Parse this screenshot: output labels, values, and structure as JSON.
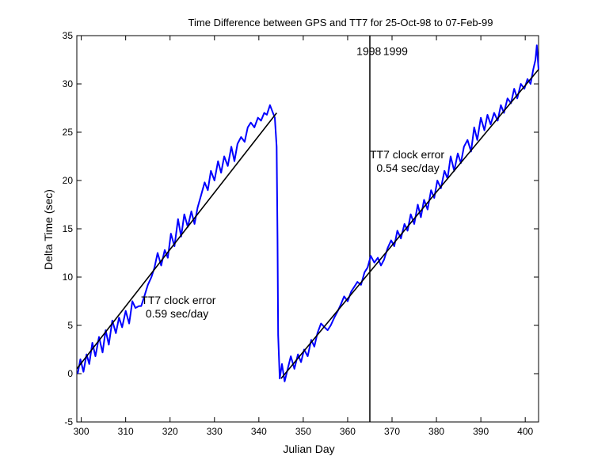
{
  "chart_data": {
    "type": "line",
    "title": "Time Difference between GPS and TT7 for 25-Oct-98 to 07-Feb-99",
    "xlabel": "Julian Day",
    "ylabel": "Delta Time  (sec)",
    "xlim": [
      299,
      403
    ],
    "ylim": [
      -5,
      35
    ],
    "x_ticks": [
      300,
      310,
      320,
      330,
      340,
      350,
      360,
      370,
      380,
      390,
      400
    ],
    "y_ticks": [
      -5,
      0,
      5,
      10,
      15,
      20,
      25,
      30,
      35
    ],
    "grid": false,
    "colors": {
      "measured": "#0000ff",
      "fit": "#000000",
      "divider": "#000000"
    },
    "series": [
      {
        "points": [
          [
            299.2,
            0.0
          ],
          [
            299.8,
            1.5
          ],
          [
            300.5,
            0.2
          ],
          [
            301.2,
            2.0
          ],
          [
            301.8,
            1.0
          ],
          [
            302.5,
            3.2
          ],
          [
            303.2,
            1.8
          ],
          [
            304.0,
            3.8
          ],
          [
            304.8,
            2.2
          ],
          [
            305.5,
            4.5
          ],
          [
            306.2,
            3.0
          ],
          [
            307.0,
            5.5
          ],
          [
            307.8,
            4.2
          ],
          [
            308.5,
            5.8
          ],
          [
            309.2,
            4.8
          ],
          [
            310.0,
            6.5
          ],
          [
            310.8,
            5.2
          ],
          [
            311.5,
            7.5
          ],
          [
            312.2,
            6.8
          ],
          [
            313.0,
            7.0
          ],
          [
            313.5,
            7.0
          ],
          [
            314.2,
            8.0
          ],
          [
            315.0,
            9.2
          ],
          [
            315.8,
            10.0
          ],
          [
            316.5,
            11.0
          ],
          [
            317.2,
            12.5
          ],
          [
            318.0,
            11.2
          ],
          [
            318.8,
            12.8
          ],
          [
            319.5,
            12.0
          ],
          [
            320.2,
            14.5
          ],
          [
            321.0,
            13.2
          ],
          [
            321.8,
            16.0
          ],
          [
            322.5,
            14.2
          ],
          [
            323.2,
            16.5
          ],
          [
            324.0,
            15.2
          ],
          [
            324.8,
            16.8
          ],
          [
            325.5,
            15.5
          ],
          [
            326.2,
            17.2
          ],
          [
            327.0,
            18.5
          ],
          [
            327.8,
            19.8
          ],
          [
            328.5,
            19.0
          ],
          [
            329.2,
            21.0
          ],
          [
            330.0,
            20.0
          ],
          [
            330.8,
            22.0
          ],
          [
            331.5,
            20.8
          ],
          [
            332.2,
            22.5
          ],
          [
            333.0,
            21.5
          ],
          [
            333.8,
            23.5
          ],
          [
            334.5,
            22.0
          ],
          [
            335.2,
            23.8
          ],
          [
            336.0,
            24.5
          ],
          [
            336.8,
            24.0
          ],
          [
            337.5,
            25.5
          ],
          [
            338.2,
            26.0
          ],
          [
            339.0,
            25.5
          ],
          [
            339.8,
            26.5
          ],
          [
            340.5,
            26.2
          ],
          [
            341.2,
            27.0
          ],
          [
            341.8,
            26.8
          ],
          [
            342.5,
            27.8
          ],
          [
            343.0,
            27.2
          ],
          [
            343.6,
            26.5
          ],
          [
            344.0,
            23.5
          ],
          [
            344.2,
            14.0
          ],
          [
            344.35,
            4.0
          ],
          [
            344.7,
            -0.5
          ],
          [
            345.2,
            1.0
          ],
          [
            345.8,
            -0.8
          ],
          [
            346.5,
            0.5
          ],
          [
            347.2,
            1.8
          ],
          [
            348.0,
            0.5
          ],
          [
            348.8,
            2.0
          ],
          [
            349.5,
            1.2
          ],
          [
            350.2,
            2.5
          ],
          [
            351.0,
            1.8
          ],
          [
            351.8,
            3.5
          ],
          [
            352.5,
            2.8
          ],
          [
            353.2,
            4.2
          ],
          [
            354.0,
            5.2
          ],
          [
            354.8,
            4.8
          ],
          [
            355.5,
            4.5
          ],
          [
            356.2,
            5.0
          ],
          [
            357.0,
            5.8
          ],
          [
            357.8,
            6.5
          ],
          [
            358.5,
            7.2
          ],
          [
            359.2,
            8.0
          ],
          [
            360.0,
            7.5
          ],
          [
            360.8,
            8.5
          ],
          [
            361.5,
            9.0
          ],
          [
            362.2,
            9.5
          ],
          [
            363.0,
            9.2
          ],
          [
            363.8,
            10.5
          ],
          [
            364.5,
            11.0
          ],
          [
            365.2,
            12.2
          ],
          [
            366.0,
            11.5
          ],
          [
            366.8,
            12.0
          ],
          [
            367.5,
            11.2
          ],
          [
            368.2,
            11.8
          ],
          [
            369.0,
            13.0
          ],
          [
            369.8,
            13.8
          ],
          [
            370.5,
            13.2
          ],
          [
            371.2,
            14.8
          ],
          [
            372.0,
            14.0
          ],
          [
            372.8,
            15.5
          ],
          [
            373.5,
            14.8
          ],
          [
            374.2,
            16.5
          ],
          [
            375.0,
            15.5
          ],
          [
            375.8,
            17.5
          ],
          [
            376.5,
            16.2
          ],
          [
            377.2,
            18.0
          ],
          [
            378.0,
            17.0
          ],
          [
            378.8,
            19.0
          ],
          [
            379.5,
            18.2
          ],
          [
            380.2,
            20.0
          ],
          [
            381.0,
            19.2
          ],
          [
            381.8,
            21.0
          ],
          [
            382.5,
            20.2
          ],
          [
            383.2,
            22.5
          ],
          [
            384.0,
            21.0
          ],
          [
            384.8,
            22.8
          ],
          [
            385.5,
            21.8
          ],
          [
            386.2,
            23.5
          ],
          [
            387.0,
            24.2
          ],
          [
            387.8,
            23.0
          ],
          [
            388.5,
            25.5
          ],
          [
            389.2,
            24.2
          ],
          [
            390.0,
            26.5
          ],
          [
            390.8,
            25.2
          ],
          [
            391.5,
            26.8
          ],
          [
            392.2,
            25.8
          ],
          [
            393.0,
            27.0
          ],
          [
            393.8,
            26.2
          ],
          [
            394.5,
            27.8
          ],
          [
            395.2,
            27.0
          ],
          [
            396.0,
            28.5
          ],
          [
            396.8,
            28.0
          ],
          [
            397.5,
            29.5
          ],
          [
            398.2,
            28.5
          ],
          [
            399.0,
            30.0
          ],
          [
            399.8,
            29.5
          ],
          [
            400.5,
            30.5
          ],
          [
            401.2,
            30.0
          ],
          [
            401.8,
            31.5
          ],
          [
            402.3,
            32.5
          ],
          [
            402.6,
            34.0
          ],
          [
            403.0,
            31.5
          ]
        ]
      },
      {
        "points": [
          [
            299.0,
            0.5
          ],
          [
            344.0,
            27.0
          ]
        ]
      },
      {
        "points": [
          [
            345.0,
            -0.5
          ],
          [
            403.0,
            31.5
          ]
        ]
      }
    ],
    "divider_x": 365,
    "annotations": [
      {
        "text": "1998",
        "x": 362.0,
        "y": 33.0
      },
      {
        "text": "1999",
        "x": 368.0,
        "y": 33.0
      },
      {
        "text": "TT7 clock error",
        "x": 313.5,
        "y": 7.2
      },
      {
        "text": "0.59 sec/day",
        "x": 314.5,
        "y": 5.8
      },
      {
        "text": "TT7 clock error",
        "x": 365.0,
        "y": 22.3
      },
      {
        "text": "0.54 sec/day",
        "x": 366.5,
        "y": 20.9
      }
    ]
  }
}
